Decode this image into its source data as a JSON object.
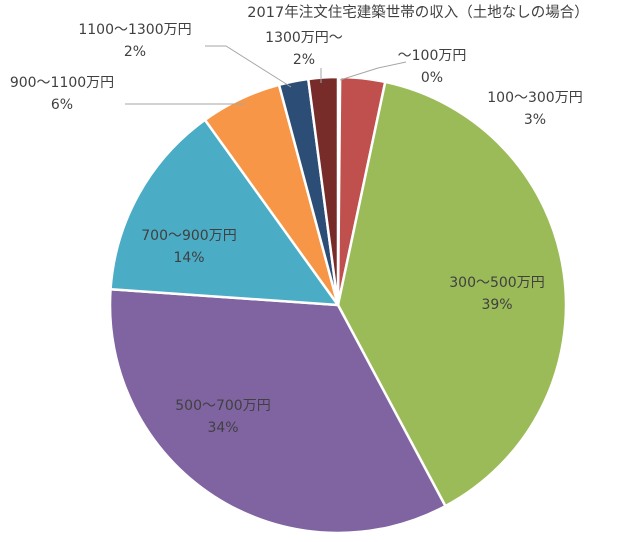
{
  "chart_data": {
    "type": "pie",
    "title": "2017年注文住宅建築世帯の収入（土地なしの場合）",
    "slices": [
      {
        "category": "～100万円",
        "value": 0,
        "label": "0%",
        "color": "#c0504d"
      },
      {
        "category": "100～300万円",
        "value": 3,
        "label": "3%",
        "color": "#c0504d"
      },
      {
        "category": "300～500万円",
        "value": 39,
        "label": "39%",
        "color": "#9bbb59"
      },
      {
        "category": "500～700万円",
        "value": 34,
        "label": "34%",
        "color": "#8064a2"
      },
      {
        "category": "700～900万円",
        "value": 14,
        "label": "14%",
        "color": "#4bacc6"
      },
      {
        "category": "900～1100万円",
        "value": 6,
        "label": "6%",
        "color": "#f79646"
      },
      {
        "category": "1100～1300万円",
        "value": 2,
        "label": "2%",
        "color": "#2c4d75"
      },
      {
        "category": "1300万円～",
        "value": 2,
        "label": "2%",
        "color": "#772c2a"
      }
    ]
  }
}
